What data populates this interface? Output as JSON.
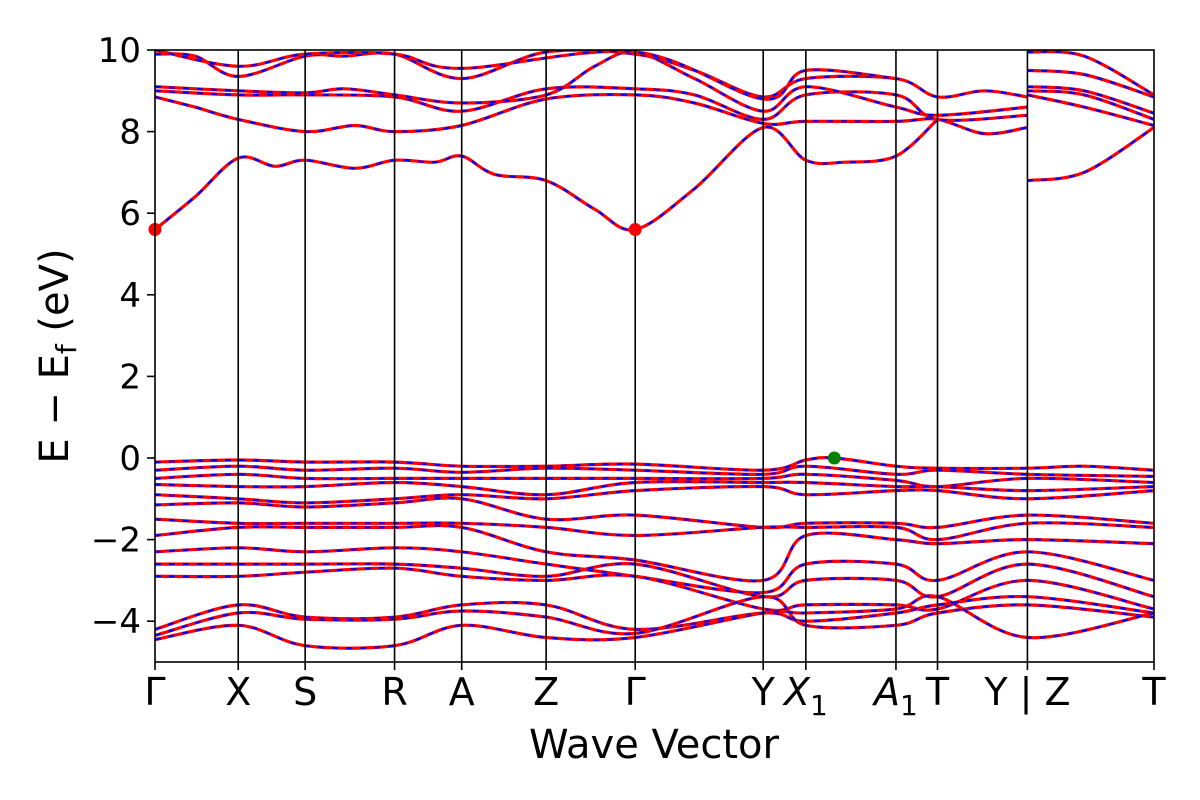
{
  "chart_data": {
    "type": "line",
    "xlabel": "Wave Vector",
    "ylabel": "E − E",
    "ylabel_sub": "f",
    "ylabel_unit": " (eV)",
    "ylim": [
      -5,
      10
    ],
    "yticks": [
      {
        "value": -4,
        "label": "−4"
      },
      {
        "value": -2,
        "label": "−2"
      },
      {
        "value": 0,
        "label": "0"
      },
      {
        "value": 2,
        "label": "2"
      },
      {
        "value": 4,
        "label": "4"
      },
      {
        "value": 6,
        "label": "6"
      },
      {
        "value": 8,
        "label": "8"
      },
      {
        "value": 10,
        "label": "10"
      }
    ],
    "kpoints": [
      {
        "label": "Γ",
        "sub": "",
        "pos": 0.0
      },
      {
        "label": "X",
        "sub": "",
        "pos": 0.0833
      },
      {
        "label": "S",
        "sub": "",
        "pos": 0.1503
      },
      {
        "label": "R",
        "sub": "",
        "pos": 0.2398
      },
      {
        "label": "A",
        "sub": "",
        "pos": 0.307
      },
      {
        "label": "Z",
        "sub": "",
        "pos": 0.3915
      },
      {
        "label": "Γ",
        "sub": "",
        "pos": 0.4807
      },
      {
        "label": "Y",
        "sub": "",
        "pos": 0.6088
      },
      {
        "label": "X",
        "sub": "1",
        "pos": 0.6515
      },
      {
        "label": "A",
        "sub": "1",
        "pos": 0.7417
      },
      {
        "label": "T",
        "sub": "",
        "pos": 0.7833
      },
      {
        "label": "Y | Z",
        "sub": "",
        "pos": 0.8733
      },
      {
        "label": "T",
        "sub": "",
        "pos": 1.0
      }
    ],
    "series_styles": [
      {
        "color": "#ff0000",
        "width": 3.2,
        "dash": ""
      },
      {
        "color": "#0000ff",
        "width": 2.2,
        "dash": "6 8"
      }
    ],
    "conduction_bands": [
      [
        [
          0.0,
          5.6
        ],
        [
          0.04,
          6.4
        ],
        [
          0.0833,
          7.35
        ],
        [
          0.12,
          7.15
        ],
        [
          0.1503,
          7.3
        ],
        [
          0.2,
          7.1
        ],
        [
          0.2398,
          7.3
        ],
        [
          0.28,
          7.25
        ],
        [
          0.307,
          7.4
        ],
        [
          0.34,
          6.95
        ],
        [
          0.3915,
          6.8
        ],
        [
          0.44,
          6.1
        ],
        [
          0.4807,
          5.6
        ],
        [
          0.54,
          6.6
        ],
        [
          0.6088,
          8.1
        ],
        [
          0.6515,
          7.3
        ],
        [
          0.69,
          7.25
        ],
        [
          0.7417,
          7.4
        ],
        [
          0.7833,
          8.3
        ]
      ],
      [
        [
          0.0,
          8.85
        ],
        [
          0.04,
          8.6
        ],
        [
          0.0833,
          8.3
        ],
        [
          0.1503,
          8.0
        ],
        [
          0.2,
          8.15
        ],
        [
          0.2398,
          8.0
        ],
        [
          0.307,
          8.15
        ],
        [
          0.3915,
          8.8
        ],
        [
          0.4807,
          8.9
        ],
        [
          0.54,
          8.7
        ],
        [
          0.6088,
          8.2
        ],
        [
          0.6515,
          8.25
        ],
        [
          0.7417,
          8.25
        ],
        [
          0.7833,
          8.3
        ],
        [
          0.83,
          7.95
        ],
        [
          0.8733,
          8.1
        ]
      ],
      [
        [
          0.0,
          9.0
        ],
        [
          0.0833,
          8.9
        ],
        [
          0.1503,
          8.9
        ],
        [
          0.2398,
          8.85
        ],
        [
          0.307,
          8.5
        ],
        [
          0.3915,
          9.05
        ],
        [
          0.4807,
          9.05
        ],
        [
          0.54,
          8.9
        ],
        [
          0.6088,
          8.3
        ],
        [
          0.6515,
          8.9
        ],
        [
          0.7417,
          8.9
        ],
        [
          0.7833,
          8.3
        ],
        [
          0.8733,
          8.4
        ]
      ],
      [
        [
          0.0,
          9.1
        ],
        [
          0.0833,
          9.0
        ],
        [
          0.1503,
          8.95
        ],
        [
          0.19,
          9.05
        ],
        [
          0.2398,
          8.9
        ],
        [
          0.307,
          8.7
        ],
        [
          0.3915,
          8.9
        ],
        [
          0.44,
          9.6
        ],
        [
          0.4807,
          9.95
        ],
        [
          0.54,
          9.3
        ],
        [
          0.6088,
          8.5
        ],
        [
          0.6515,
          9.1
        ],
        [
          0.7417,
          8.6
        ],
        [
          0.7833,
          8.4
        ],
        [
          0.8733,
          8.6
        ]
      ],
      [
        [
          0.0,
          9.9
        ],
        [
          0.04,
          9.85
        ],
        [
          0.0833,
          9.35
        ],
        [
          0.1503,
          9.85
        ],
        [
          0.19,
          9.85
        ],
        [
          0.2398,
          9.9
        ],
        [
          0.307,
          9.3
        ],
        [
          0.3915,
          9.95
        ],
        [
          0.4807,
          9.9
        ],
        [
          0.54,
          9.5
        ],
        [
          0.6088,
          8.85
        ],
        [
          0.6515,
          9.3
        ],
        [
          0.7417,
          9.3
        ],
        [
          0.7833,
          8.85
        ],
        [
          0.83,
          9.0
        ],
        [
          0.8733,
          8.85
        ]
      ],
      [
        [
          0.0,
          10.0
        ],
        [
          0.0833,
          9.6
        ],
        [
          0.1503,
          9.9
        ],
        [
          0.2398,
          9.9
        ],
        [
          0.307,
          9.55
        ],
        [
          0.4807,
          9.95
        ],
        [
          0.6088,
          8.8
        ],
        [
          0.6515,
          9.5
        ],
        [
          0.7417,
          9.3
        ]
      ],
      [
        [
          0.8733,
          6.8
        ],
        [
          0.93,
          7.0
        ],
        [
          1.0,
          8.1
        ]
      ],
      [
        [
          0.8733,
          8.9
        ],
        [
          0.93,
          8.6
        ],
        [
          1.0,
          8.15
        ]
      ],
      [
        [
          0.8733,
          9.0
        ],
        [
          0.93,
          8.9
        ],
        [
          1.0,
          8.3
        ]
      ],
      [
        [
          0.8733,
          9.1
        ],
        [
          0.93,
          9.0
        ],
        [
          1.0,
          8.45
        ]
      ],
      [
        [
          0.8733,
          9.5
        ],
        [
          0.93,
          9.4
        ],
        [
          1.0,
          8.85
        ]
      ],
      [
        [
          0.8733,
          9.95
        ],
        [
          0.93,
          9.85
        ],
        [
          1.0,
          8.9
        ]
      ]
    ],
    "valence_bands": [
      [
        [
          0.0,
          -0.1
        ],
        [
          0.0833,
          -0.05
        ],
        [
          0.1503,
          -0.1
        ],
        [
          0.2398,
          -0.1
        ],
        [
          0.307,
          -0.2
        ],
        [
          0.3915,
          -0.2
        ],
        [
          0.4807,
          -0.15
        ],
        [
          0.6088,
          -0.3
        ],
        [
          0.6515,
          -0.05
        ],
        [
          0.68,
          0.0
        ],
        [
          0.7417,
          -0.2
        ],
        [
          0.7833,
          -0.25
        ],
        [
          0.8733,
          -0.25
        ],
        [
          0.93,
          -0.2
        ],
        [
          1.0,
          -0.3
        ]
      ],
      [
        [
          0.0,
          -0.3
        ],
        [
          0.0833,
          -0.2
        ],
        [
          0.1503,
          -0.3
        ],
        [
          0.2398,
          -0.25
        ],
        [
          0.307,
          -0.35
        ],
        [
          0.3915,
          -0.25
        ],
        [
          0.4807,
          -0.3
        ],
        [
          0.6088,
          -0.4
        ],
        [
          0.6515,
          -0.2
        ],
        [
          0.7417,
          -0.4
        ],
        [
          0.7833,
          -0.3
        ],
        [
          0.8733,
          -0.4
        ],
        [
          1.0,
          -0.45
        ]
      ],
      [
        [
          0.0,
          -0.5
        ],
        [
          0.0833,
          -0.4
        ],
        [
          0.1503,
          -0.5
        ],
        [
          0.2398,
          -0.5
        ],
        [
          0.307,
          -0.5
        ],
        [
          0.3915,
          -0.5
        ],
        [
          0.4807,
          -0.5
        ],
        [
          0.6088,
          -0.5
        ],
        [
          0.6515,
          -0.4
        ],
        [
          0.7417,
          -0.55
        ],
        [
          0.7833,
          -0.7
        ],
        [
          0.8733,
          -0.5
        ],
        [
          1.0,
          -0.6
        ]
      ],
      [
        [
          0.0,
          -0.65
        ],
        [
          0.0833,
          -0.7
        ],
        [
          0.1503,
          -0.7
        ],
        [
          0.2398,
          -0.6
        ],
        [
          0.307,
          -0.7
        ],
        [
          0.3915,
          -0.9
        ],
        [
          0.4807,
          -0.6
        ],
        [
          0.6088,
          -0.6
        ],
        [
          0.6515,
          -0.6
        ],
        [
          0.7417,
          -0.7
        ],
        [
          0.7833,
          -0.7
        ],
        [
          0.8733,
          -0.8
        ],
        [
          1.0,
          -0.7
        ]
      ],
      [
        [
          0.0,
          -0.9
        ],
        [
          0.0833,
          -1.0
        ],
        [
          0.1503,
          -1.1
        ],
        [
          0.2398,
          -1.0
        ],
        [
          0.307,
          -0.9
        ],
        [
          0.3915,
          -1.0
        ],
        [
          0.4807,
          -0.8
        ],
        [
          0.6088,
          -0.7
        ],
        [
          0.6515,
          -0.9
        ],
        [
          0.7417,
          -0.8
        ],
        [
          0.7833,
          -0.8
        ],
        [
          0.8733,
          -1.0
        ],
        [
          1.0,
          -0.8
        ]
      ],
      [
        [
          0.0,
          -1.15
        ],
        [
          0.0833,
          -1.1
        ],
        [
          0.1503,
          -1.2
        ],
        [
          0.2398,
          -1.1
        ],
        [
          0.307,
          -1.0
        ],
        [
          0.3915,
          -1.5
        ],
        [
          0.4807,
          -1.4
        ],
        [
          0.6088,
          -1.7
        ],
        [
          0.6515,
          -1.6
        ],
        [
          0.7417,
          -1.6
        ],
        [
          0.7833,
          -1.7
        ],
        [
          0.8733,
          -1.4
        ],
        [
          1.0,
          -1.6
        ]
      ],
      [
        [
          0.0,
          -1.5
        ],
        [
          0.0833,
          -1.6
        ],
        [
          0.1503,
          -1.6
        ],
        [
          0.2398,
          -1.6
        ],
        [
          0.307,
          -1.6
        ],
        [
          0.3915,
          -1.7
        ],
        [
          0.4807,
          -1.9
        ],
        [
          0.6088,
          -1.7
        ],
        [
          0.6515,
          -1.7
        ],
        [
          0.7417,
          -1.7
        ],
        [
          0.7833,
          -2.0
        ],
        [
          0.8733,
          -1.6
        ],
        [
          1.0,
          -1.7
        ]
      ],
      [
        [
          0.0,
          -1.9
        ],
        [
          0.0833,
          -1.7
        ],
        [
          0.1503,
          -1.7
        ],
        [
          0.2398,
          -1.7
        ],
        [
          0.307,
          -1.7
        ],
        [
          0.3915,
          -2.3
        ],
        [
          0.4807,
          -2.5
        ],
        [
          0.6088,
          -3.0
        ],
        [
          0.6515,
          -1.9
        ],
        [
          0.7417,
          -2.0
        ],
        [
          0.7833,
          -2.1
        ],
        [
          0.8733,
          -2.0
        ],
        [
          1.0,
          -2.1
        ]
      ],
      [
        [
          0.0,
          -2.3
        ],
        [
          0.0833,
          -2.2
        ],
        [
          0.1503,
          -2.3
        ],
        [
          0.2398,
          -2.2
        ],
        [
          0.307,
          -2.3
        ],
        [
          0.3915,
          -2.6
        ],
        [
          0.4807,
          -2.9
        ],
        [
          0.6088,
          -3.3
        ],
        [
          0.6515,
          -2.6
        ],
        [
          0.7417,
          -2.6
        ],
        [
          0.7833,
          -3.0
        ],
        [
          0.8733,
          -2.3
        ],
        [
          1.0,
          -3.0
        ]
      ],
      [
        [
          0.0,
          -2.6
        ],
        [
          0.0833,
          -2.6
        ],
        [
          0.1503,
          -2.6
        ],
        [
          0.2398,
          -2.6
        ],
        [
          0.307,
          -2.7
        ],
        [
          0.3915,
          -2.9
        ],
        [
          0.4807,
          -2.6
        ],
        [
          0.6088,
          -3.4
        ],
        [
          0.6515,
          -3.0
        ],
        [
          0.7417,
          -3.0
        ],
        [
          0.7833,
          -3.4
        ],
        [
          0.8733,
          -2.6
        ],
        [
          1.0,
          -3.4
        ]
      ],
      [
        [
          0.0,
          -2.9
        ],
        [
          0.0833,
          -2.9
        ],
        [
          0.1503,
          -2.8
        ],
        [
          0.2398,
          -2.7
        ],
        [
          0.307,
          -2.9
        ],
        [
          0.3915,
          -3.0
        ],
        [
          0.4807,
          -2.9
        ],
        [
          0.6088,
          -3.7
        ],
        [
          0.6515,
          -3.6
        ],
        [
          0.7417,
          -3.6
        ],
        [
          0.7833,
          -3.7
        ],
        [
          0.8733,
          -3.0
        ],
        [
          1.0,
          -3.7
        ]
      ],
      [
        [
          0.0,
          -4.2
        ],
        [
          0.0833,
          -3.6
        ],
        [
          0.1503,
          -3.9
        ],
        [
          0.2398,
          -3.9
        ],
        [
          0.307,
          -3.6
        ],
        [
          0.3915,
          -3.6
        ],
        [
          0.4807,
          -4.2
        ],
        [
          0.6088,
          -3.8
        ],
        [
          0.6515,
          -4.0
        ],
        [
          0.7417,
          -3.8
        ],
        [
          0.7833,
          -3.6
        ],
        [
          0.8733,
          -3.4
        ],
        [
          1.0,
          -3.8
        ]
      ],
      [
        [
          0.0,
          -4.35
        ],
        [
          0.0833,
          -3.8
        ],
        [
          0.1503,
          -3.95
        ],
        [
          0.2398,
          -3.95
        ],
        [
          0.307,
          -3.75
        ],
        [
          0.3915,
          -3.9
        ],
        [
          0.4807,
          -4.3
        ],
        [
          0.6088,
          -3.4
        ],
        [
          0.6515,
          -4.1
        ],
        [
          0.7417,
          -4.1
        ],
        [
          0.7833,
          -3.8
        ],
        [
          0.8733,
          -3.6
        ],
        [
          1.0,
          -3.9
        ]
      ],
      [
        [
          0.0,
          -4.45
        ],
        [
          0.0833,
          -4.1
        ],
        [
          0.1503,
          -4.6
        ],
        [
          0.2398,
          -4.6
        ],
        [
          0.307,
          -4.1
        ],
        [
          0.3915,
          -4.4
        ],
        [
          0.4807,
          -4.4
        ],
        [
          0.6088,
          -3.8
        ],
        [
          0.6515,
          -3.8
        ],
        [
          0.7417,
          -3.7
        ],
        [
          0.7833,
          -3.4
        ],
        [
          0.8733,
          -4.4
        ],
        [
          1.0,
          -3.8
        ]
      ]
    ],
    "markers": [
      {
        "name": "cbm-marker",
        "x": 0.0,
        "y": 5.6,
        "color": "#ff0000"
      },
      {
        "name": "cbm-marker",
        "x": 0.4807,
        "y": 5.6,
        "color": "#ff0000"
      },
      {
        "name": "vbm-marker",
        "x": 0.68,
        "y": 0.0,
        "color": "#008000"
      }
    ],
    "grid": false,
    "legend": "none"
  }
}
